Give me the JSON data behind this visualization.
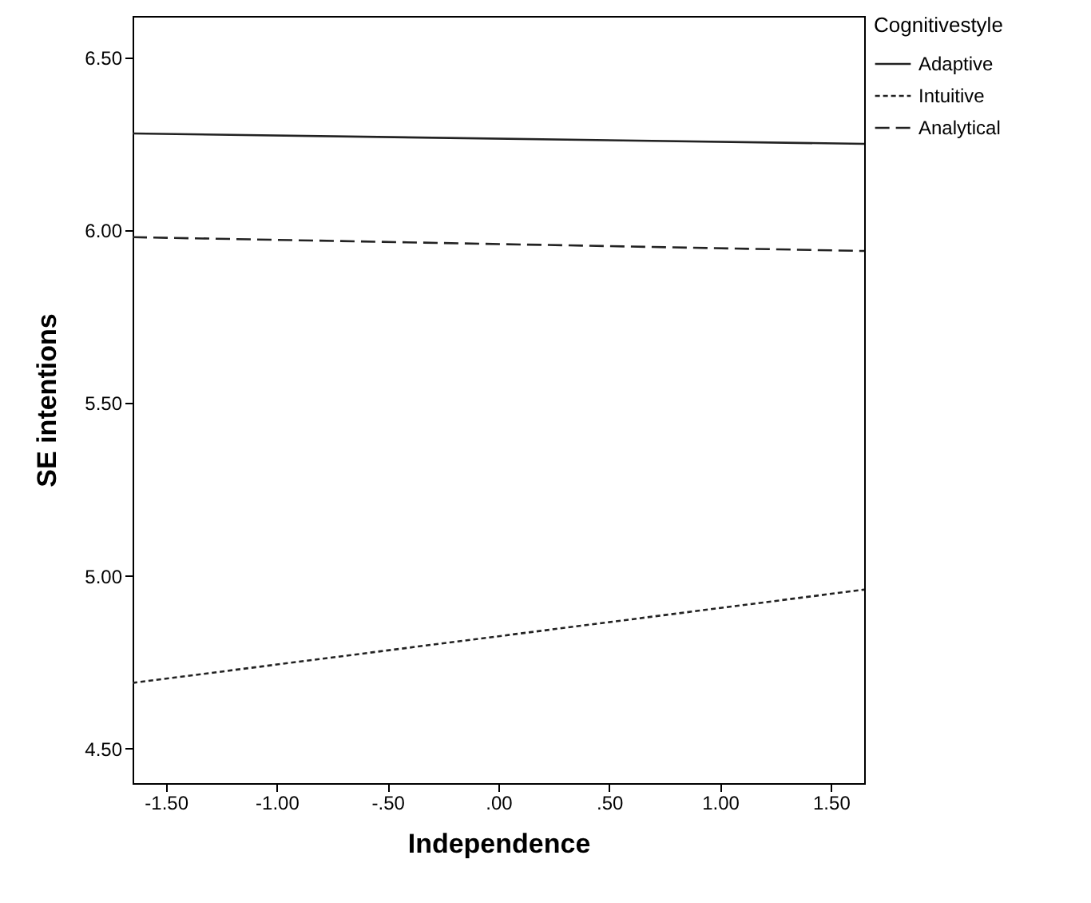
{
  "chart_data": {
    "type": "line",
    "xlabel": "Independence",
    "ylabel": "SE intentions",
    "legend_title": "Cognitivestyle",
    "legend": "top right",
    "grid": false,
    "marker": "none",
    "x": [
      -1.65,
      1.65
    ],
    "xlim": [
      -1.65,
      1.65
    ],
    "xticks": [
      {
        "value": -1.5,
        "label": "-1.50"
      },
      {
        "value": -1,
        "label": "-1.00"
      },
      {
        "value": -0.5,
        "label": "-.50"
      },
      {
        "value": 0,
        "label": ".00"
      },
      {
        "value": 0.5,
        "label": ".50"
      },
      {
        "value": 1,
        "label": "1.00"
      },
      {
        "value": 1.5,
        "label": "1.50"
      }
    ],
    "ylim": [
      4.4,
      6.62
    ],
    "yticks": [
      {
        "value": 4.5,
        "label": "4.50"
      },
      {
        "value": 5,
        "label": "5.00"
      },
      {
        "value": 5.5,
        "label": "5.50"
      },
      {
        "value": 6,
        "label": "6.00"
      },
      {
        "value": 6.5,
        "label": "6.50"
      }
    ],
    "series": [
      {
        "name": "Adaptive",
        "color": "#222222",
        "line_style": "solid",
        "values": [
          6.28,
          6.25
        ]
      },
      {
        "name": "Intuitive",
        "color": "#222222",
        "line_style": "dotted",
        "values": [
          4.69,
          4.96
        ]
      },
      {
        "name": "Analytical",
        "color": "#222222",
        "line_style": "dashed",
        "values": [
          5.98,
          5.94
        ]
      }
    ]
  }
}
